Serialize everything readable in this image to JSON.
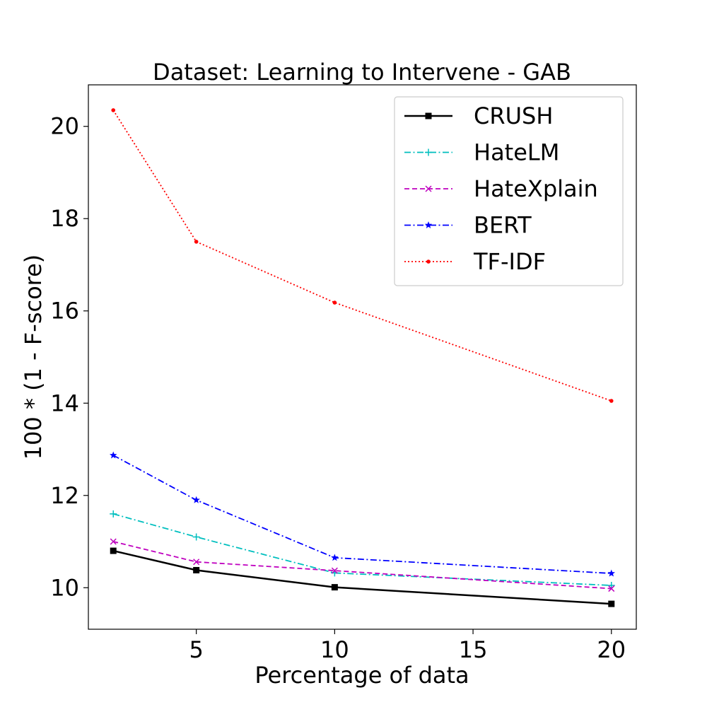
{
  "chart_data": {
    "type": "line",
    "title": "Dataset: Learning to Intervene - GAB",
    "xlabel": "Percentage of data",
    "ylabel": "100 * (1 - F-score)",
    "x": [
      2,
      5,
      10,
      20
    ],
    "xlim": [
      1.1,
      20.9
    ],
    "ylim": [
      9.1,
      20.9
    ],
    "xticks": [
      5,
      10,
      15,
      20
    ],
    "yticks": [
      10,
      12,
      14,
      16,
      18,
      20
    ],
    "grid": false,
    "legend_position": "top-right",
    "series": [
      {
        "name": "CRUSH",
        "values": [
          10.8,
          10.38,
          10.01,
          9.65
        ],
        "color": "#000000",
        "dash": "solid",
        "marker": "square"
      },
      {
        "name": "HateLM",
        "values": [
          11.6,
          11.1,
          10.32,
          10.05
        ],
        "color": "#00bfbf",
        "dash": "dashdot",
        "marker": "plus"
      },
      {
        "name": "HateXplain",
        "values": [
          11.0,
          10.56,
          10.37,
          9.98
        ],
        "color": "#bf00bf",
        "dash": "dashed",
        "marker": "x"
      },
      {
        "name": "BERT",
        "values": [
          12.87,
          11.9,
          10.65,
          10.31
        ],
        "color": "#0000ff",
        "dash": "dashdot",
        "marker": "star"
      },
      {
        "name": "TF-IDF",
        "values": [
          20.35,
          17.5,
          16.18,
          14.05
        ],
        "color": "#ff0000",
        "dash": "dotted",
        "marker": "dot"
      }
    ]
  }
}
